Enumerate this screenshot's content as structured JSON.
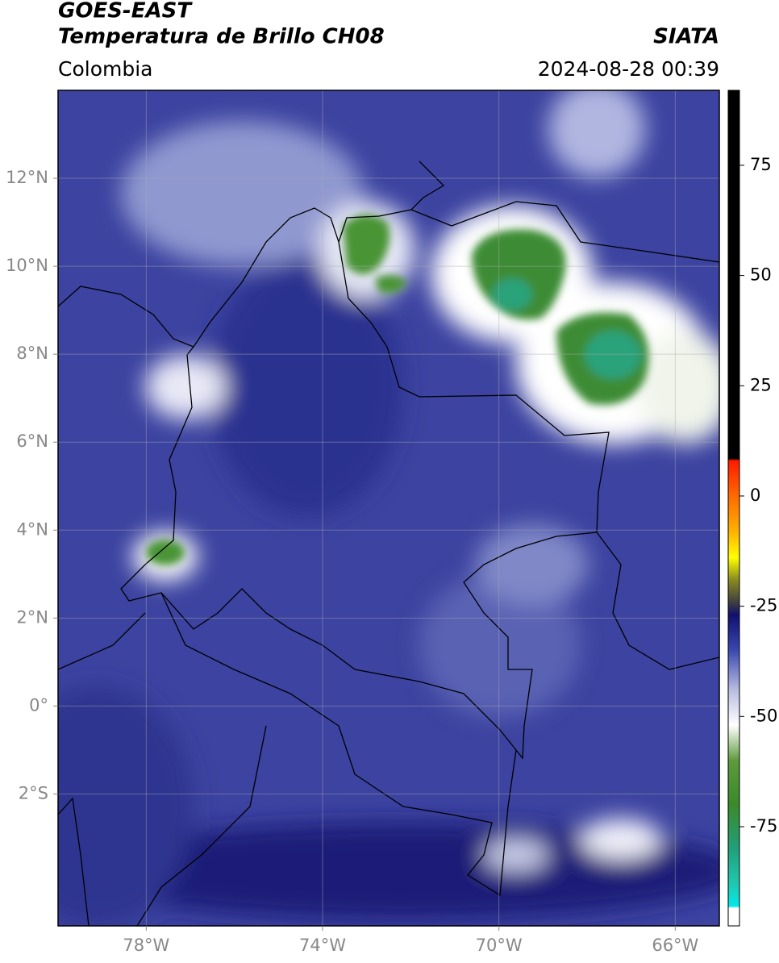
{
  "header": {
    "title": "GOES-EAST",
    "subtitle": "Temperatura de Brillo CH08",
    "source": "SIATA",
    "region": "Colombia",
    "timestamp": "2024-08-28 00:39"
  },
  "map": {
    "xlim": [
      -80,
      -65
    ],
    "ylim": [
      -5,
      14
    ],
    "grid": true,
    "xticks": [
      {
        "value": -78,
        "label": "78°W"
      },
      {
        "value": -74,
        "label": "74°W"
      },
      {
        "value": -70,
        "label": "70°W"
      },
      {
        "value": -66,
        "label": "66°W"
      }
    ],
    "yticks": [
      {
        "value": 12,
        "label": "12°N"
      },
      {
        "value": 10,
        "label": "10°N"
      },
      {
        "value": 8,
        "label": "8°N"
      },
      {
        "value": 6,
        "label": "6°N"
      },
      {
        "value": 4,
        "label": "4°N"
      },
      {
        "value": 2,
        "label": "2°N"
      },
      {
        "value": 0,
        "label": "0°"
      },
      {
        "value": -2,
        "label": "2°S"
      }
    ]
  },
  "colorbar": {
    "lim": [
      -97.5,
      92
    ],
    "ticks": [
      75,
      50,
      25,
      0,
      -25,
      -50,
      -75
    ],
    "stops": [
      {
        "value": 92,
        "color": "#000000"
      },
      {
        "value": 8.5,
        "color": "#000000"
      },
      {
        "value": 8,
        "color": "#ff1a00"
      },
      {
        "value": 0,
        "color": "#ff6a00"
      },
      {
        "value": -8,
        "color": "#ffb000"
      },
      {
        "value": -14,
        "color": "#ffff00"
      },
      {
        "value": -19,
        "color": "#8a8a20"
      },
      {
        "value": -24,
        "color": "#404040"
      },
      {
        "value": -27,
        "color": "#10106e"
      },
      {
        "value": -35,
        "color": "#3a48b0"
      },
      {
        "value": -44,
        "color": "#b8bce0"
      },
      {
        "value": -52,
        "color": "#ffffff"
      },
      {
        "value": -60,
        "color": "#5e9a3c"
      },
      {
        "value": -70,
        "color": "#3a8a2a"
      },
      {
        "value": -80,
        "color": "#20a07a"
      },
      {
        "value": -88,
        "color": "#20c8b0"
      },
      {
        "value": -93,
        "color": "#00e8e8"
      },
      {
        "value": -93.5,
        "color": "#ffffff"
      },
      {
        "value": -97.5,
        "color": "#ffffff"
      }
    ]
  }
}
